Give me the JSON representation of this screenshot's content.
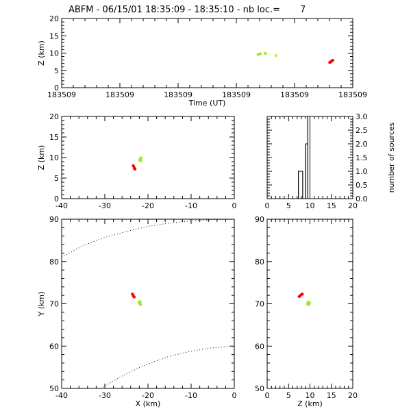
{
  "title": "ABFM - 06/15/01 18:35:09 - 18:35:10 - nb loc.=       7",
  "colors": {
    "red": "#ff0000",
    "green": "#99ee22",
    "yellow": "#ccee22",
    "axis": "#000000"
  },
  "chart_data": [
    {
      "id": "time-height",
      "type": "scatter",
      "xlabel": "Time (UT)",
      "ylabel": "Z (km)",
      "x_tick_labels": [
        "183509",
        "183509",
        "183509",
        "183509",
        "183509",
        "183509"
      ],
      "ylim": [
        0,
        20
      ],
      "yticks": [
        0,
        5,
        10,
        15,
        20
      ],
      "x_domain": [
        0,
        1
      ],
      "series": [
        {
          "color": "green",
          "points": [
            [
              0.675,
              9.6
            ],
            [
              0.682,
              9.8
            ],
            [
              0.7,
              9.9
            ]
          ]
        },
        {
          "color": "yellow",
          "points": [
            [
              0.736,
              9.3
            ]
          ]
        },
        {
          "color": "red",
          "points": [
            [
              0.921,
              7.3
            ],
            [
              0.926,
              7.6
            ],
            [
              0.931,
              7.9
            ]
          ]
        }
      ]
    },
    {
      "id": "x-height",
      "type": "scatter",
      "xlabel": "",
      "ylabel": "Z (km)",
      "xlim": [
        -40,
        0
      ],
      "xticks": [
        -40,
        -30,
        -20,
        -10,
        0
      ],
      "ylim": [
        0,
        20
      ],
      "yticks": [
        0,
        5,
        10,
        15,
        20
      ],
      "series": [
        {
          "color": "green",
          "points": [
            [
              -21.9,
              9.4
            ],
            [
              -21.8,
              9.7
            ],
            [
              -21.6,
              9.9
            ],
            [
              -21.7,
              9.2
            ]
          ]
        },
        {
          "color": "red",
          "points": [
            [
              -23.4,
              8.0
            ],
            [
              -23.2,
              7.5
            ],
            [
              -23.0,
              7.2
            ]
          ]
        }
      ]
    },
    {
      "id": "height-histogram",
      "type": "bar",
      "xlabel": "",
      "ylabel": "number of sources",
      "xlim": [
        0,
        20
      ],
      "xticks": [
        0,
        5,
        10,
        15,
        20
      ],
      "ylim": [
        0,
        3
      ],
      "yticks": [
        "0.0",
        "0.5",
        "1.0",
        "1.5",
        "2.0",
        "2.5",
        "3.0"
      ],
      "bins": [
        {
          "x0": 0,
          "x1": 7.3,
          "value": 0
        },
        {
          "x0": 7.3,
          "x1": 8.3,
          "value": 1
        },
        {
          "x0": 8.3,
          "x1": 9.0,
          "value": 0
        },
        {
          "x0": 9.0,
          "x1": 9.5,
          "value": 2
        },
        {
          "x0": 9.5,
          "x1": 10.0,
          "value": 3
        },
        {
          "x0": 10.0,
          "x1": 20,
          "value": 0
        }
      ]
    },
    {
      "id": "plan-view",
      "type": "scatter",
      "xlabel": "X (km)",
      "ylabel": "Y (km)",
      "xlim": [
        -40,
        0
      ],
      "xticks": [
        -40,
        -30,
        -20,
        -10,
        0
      ],
      "ylim": [
        50,
        90
      ],
      "yticks": [
        50,
        60,
        70,
        80,
        90
      ],
      "series": [
        {
          "color": "green",
          "points": [
            [
              -21.9,
              70.1
            ],
            [
              -21.7,
              69.8
            ],
            [
              -22.1,
              70.4
            ],
            [
              -21.8,
              70.5
            ]
          ]
        },
        {
          "color": "red",
          "points": [
            [
              -23.6,
              72.3
            ],
            [
              -23.4,
              71.9
            ],
            [
              -23.2,
              71.6
            ]
          ]
        }
      ],
      "curves": [
        {
          "style": "dotted",
          "points": [
            [
              -40,
              81
            ],
            [
              -35,
              83.8
            ],
            [
              -30,
              85.7
            ],
            [
              -25,
              87.1
            ],
            [
              -20,
              88.3
            ],
            [
              -15,
              89.1
            ],
            [
              -10,
              89.6
            ],
            [
              -5,
              89.9
            ],
            [
              0,
              90
            ]
          ]
        },
        {
          "style": "dotted",
          "points": [
            [
              -31,
              50
            ],
            [
              -25,
              53.5
            ],
            [
              -20,
              55.8
            ],
            [
              -15,
              57.6
            ],
            [
              -10,
              58.8
            ],
            [
              -5,
              59.6
            ],
            [
              0,
              60
            ]
          ]
        }
      ]
    },
    {
      "id": "z-y-view",
      "type": "scatter",
      "xlabel": "Z (km)",
      "ylabel": "",
      "xlim": [
        0,
        20
      ],
      "xticks": [
        0,
        5,
        10,
        15,
        20
      ],
      "ylim": [
        50,
        90
      ],
      "yticks": [
        50,
        60,
        70,
        80,
        90
      ],
      "series": [
        {
          "color": "green",
          "points": [
            [
              9.4,
              70.0
            ],
            [
              9.7,
              69.8
            ],
            [
              9.9,
              70.2
            ],
            [
              9.6,
              70.4
            ]
          ]
        },
        {
          "color": "red",
          "points": [
            [
              7.5,
              71.7
            ],
            [
              7.9,
              72.1
            ],
            [
              8.2,
              72.3
            ]
          ]
        }
      ]
    }
  ]
}
